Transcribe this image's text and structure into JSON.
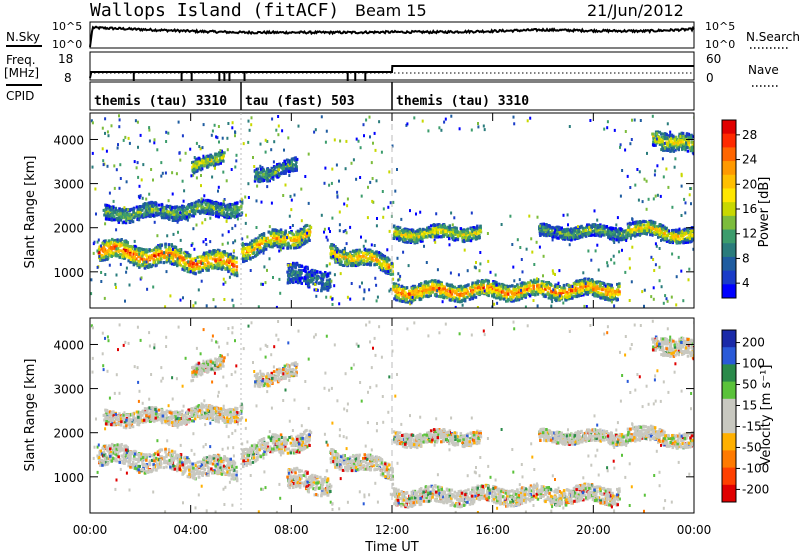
{
  "header": {
    "station": "Wallops Island (fitACF)",
    "beam": "Beam 15",
    "date": "21/Jun/2012"
  },
  "top_panel": {
    "nsky_label": "N.Sky",
    "nsearch_label": "N.Search",
    "left_ticks": [
      "10^5",
      "10^0"
    ],
    "right_ticks": [
      "10^5",
      "10^0"
    ]
  },
  "freq_panel": {
    "freq_label": "Freq.",
    "freq_unit": "[MHz]",
    "nave_label": "Nave",
    "left_ticks": [
      "18",
      "8"
    ],
    "right_ticks": [
      "60",
      "0"
    ]
  },
  "cpid_panel": {
    "label": "CPID",
    "segments": [
      {
        "start_h": 0,
        "end_h": 6,
        "label": "themis (tau) 3310"
      },
      {
        "start_h": 6,
        "end_h": 12,
        "label": "tau (fast) 503"
      },
      {
        "start_h": 12,
        "end_h": 24,
        "label": "themis (tau) 3310"
      }
    ]
  },
  "axes": {
    "x_label": "Time UT",
    "x_ticks": [
      "00:00",
      "04:00",
      "08:00",
      "12:00",
      "16:00",
      "20:00",
      "00:00"
    ],
    "y_label": "Slant Range [km]",
    "y_ticks": [
      "1000",
      "2000",
      "3000",
      "4000"
    ]
  },
  "power_colorbar": {
    "label": "Power [dB]",
    "ticks": [
      "28",
      "24",
      "20",
      "16",
      "12",
      "8",
      "4"
    ],
    "colors": [
      "#e00000",
      "#ff2a00",
      "#ff6600",
      "#ff9900",
      "#ffbf00",
      "#ffe600",
      "#c8d800",
      "#7cbc3c",
      "#3c9c6c",
      "#2a7c7c",
      "#1f5ca0",
      "#1a3cc8",
      "#0000ff"
    ]
  },
  "velocity_colorbar": {
    "label": "Velocity [m s⁻¹]",
    "ticks": [
      "200",
      "100",
      "50",
      "15",
      "-15",
      "-50",
      "-100",
      "-200"
    ],
    "colors": [
      "#1a2aa8",
      "#2a5ad8",
      "#2a8a4a",
      "#5ac23a",
      "#c8c8c0",
      "#c8c8c0",
      "#ffb000",
      "#ff7a00",
      "#ff4000",
      "#e00000"
    ]
  },
  "chart_data": [
    {
      "type": "line",
      "title": "Wallops Island (fitACF)",
      "series": [
        {
          "name": "N.Sky",
          "x_hours": [
            0,
            0.1,
            2,
            4,
            6,
            8,
            10,
            12,
            14,
            16,
            18,
            20,
            22,
            23.9,
            24
          ],
          "values_log10": [
            0,
            4.4,
            4.0,
            3.6,
            3.3,
            3.3,
            3.3,
            3.4,
            3.4,
            3.6,
            3.9,
            3.7,
            3.6,
            4.0,
            4.2
          ]
        }
      ],
      "ylabel": "N.Sky"
    },
    {
      "type": "line",
      "series": [
        {
          "name": "Freq.",
          "x_hours": [
            0,
            0.05,
            12,
            12.01,
            24
          ],
          "values": [
            8,
            10.5,
            10.5,
            13,
            13
          ]
        }
      ],
      "ylim": [
        8,
        18
      ]
    },
    {
      "type": "heatmap",
      "quantity": "Power [dB]",
      "xlabel": "Time UT",
      "ylabel": "Slant Range [km]",
      "xlim_hours": [
        0,
        24
      ],
      "ylim_km": [
        180,
        4600
      ],
      "clim": [
        0,
        30
      ],
      "features": [
        {
          "t0": 0.3,
          "t1": 5.8,
          "r0": 1500,
          "r1": 1150,
          "power": 26,
          "spread": 220
        },
        {
          "t0": 0.5,
          "t1": 6.0,
          "r0": 2300,
          "r1": 2450,
          "power": 13,
          "spread": 160
        },
        {
          "t0": 6.0,
          "t1": 8.7,
          "r0": 1500,
          "r1": 1900,
          "power": 22,
          "spread": 200
        },
        {
          "t0": 6.5,
          "t1": 8.2,
          "r0": 3200,
          "r1": 3400,
          "power": 12,
          "spread": 150
        },
        {
          "t0": 4.0,
          "t1": 5.3,
          "r0": 3300,
          "r1": 3700,
          "power": 18,
          "spread": 140
        },
        {
          "t0": 7.8,
          "t1": 9.5,
          "r0": 900,
          "r1": 850,
          "power": 8,
          "spread": 220
        },
        {
          "t0": 9.5,
          "t1": 12.0,
          "r0": 1450,
          "r1": 1150,
          "power": 22,
          "spread": 180
        },
        {
          "t0": 12.0,
          "t1": 21.0,
          "r0": 550,
          "r1": 600,
          "power": 25,
          "spread": 180
        },
        {
          "t0": 12.0,
          "t1": 15.5,
          "r0": 1850,
          "r1": 1900,
          "power": 18,
          "spread": 150
        },
        {
          "t0": 17.8,
          "t1": 21.3,
          "r0": 1900,
          "r1": 1900,
          "power": 13,
          "spread": 130
        },
        {
          "t0": 21.3,
          "t1": 24.0,
          "r0": 2000,
          "r1": 1800,
          "power": 20,
          "spread": 160
        },
        {
          "t0": 22.3,
          "t1": 24.0,
          "r0": 4100,
          "r1": 3800,
          "power": 18,
          "spread": 200
        }
      ]
    },
    {
      "type": "heatmap",
      "quantity": "Velocity [m s⁻¹]",
      "xlabel": "Time UT",
      "ylabel": "Slant Range [km]",
      "xlim_hours": [
        0,
        24
      ],
      "ylim_km": [
        180,
        4600
      ],
      "clim": [
        -200,
        200
      ],
      "note_values": "mostly near 0 (grey) with scattered ±50..200"
    }
  ]
}
